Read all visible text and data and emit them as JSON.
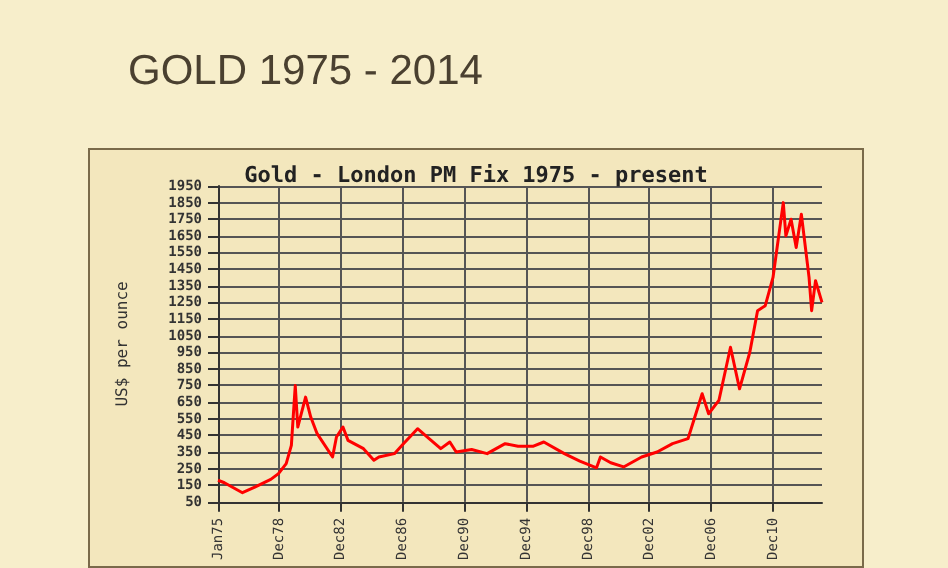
{
  "chart_data": {
    "type": "line",
    "title": "GOLD 1975 - 2014",
    "subtitle": "Gold - London PM Fix 1975 - present",
    "ylabel": "US$ per ounce",
    "x": [
      "1975-01",
      "1975-06",
      "1976-08",
      "1977-06",
      "1978-06",
      "1978-12",
      "1979-06",
      "1979-10",
      "1980-01",
      "1980-03",
      "1980-09",
      "1981-01",
      "1981-06",
      "1982-06",
      "1982-09",
      "1983-02",
      "1983-06",
      "1984-06",
      "1985-02",
      "1985-06",
      "1986-06",
      "1987-01",
      "1987-12",
      "1988-06",
      "1989-06",
      "1990-01",
      "1990-06",
      "1991-06",
      "1992-06",
      "1993-08",
      "1994-06",
      "1995-06",
      "1996-02",
      "1997-06",
      "1998-06",
      "1999-07",
      "1999-10",
      "2000-06",
      "2001-04",
      "2002-06",
      "2003-06",
      "2004-06",
      "2005-06",
      "2006-05",
      "2006-10",
      "2007-06",
      "2008-03",
      "2008-10",
      "2009-06",
      "2009-12",
      "2010-06",
      "2010-12",
      "2011-08",
      "2011-10",
      "2012-02",
      "2012-06",
      "2012-10",
      "2013-04",
      "2013-06",
      "2013-09",
      "2014-02"
    ],
    "series": [
      {
        "color": "#ff0000",
        "values": [
          180,
          165,
          105,
          140,
          185,
          220,
          280,
          390,
          750,
          500,
          680,
          560,
          460,
          320,
          440,
          500,
          420,
          370,
          300,
          320,
          340,
          400,
          490,
          450,
          370,
          410,
          350,
          365,
          340,
          400,
          385,
          385,
          410,
          340,
          295,
          255,
          320,
          285,
          260,
          320,
          350,
          400,
          430,
          700,
          580,
          660,
          980,
          730,
          950,
          1200,
          1230,
          1400,
          1850,
          1650,
          1750,
          1580,
          1780,
          1400,
          1200,
          1380,
          1250
        ]
      }
    ],
    "xlim": [
      "1975-01",
      "2014-02"
    ],
    "xticks": [
      {
        "value": "1975-01",
        "label": "Jan75"
      },
      {
        "value": "1978-12",
        "label": "Dec78"
      },
      {
        "value": "1982-12",
        "label": "Dec82"
      },
      {
        "value": "1986-12",
        "label": "Dec86"
      },
      {
        "value": "1990-12",
        "label": "Dec90"
      },
      {
        "value": "1994-12",
        "label": "Dec94"
      },
      {
        "value": "1998-12",
        "label": "Dec98"
      },
      {
        "value": "2002-12",
        "label": "Dec02"
      },
      {
        "value": "2006-12",
        "label": "Dec06"
      },
      {
        "value": "2010-12",
        "label": "Dec10"
      }
    ],
    "ylim": [
      50,
      1950
    ],
    "yticks": [
      50,
      150,
      250,
      350,
      450,
      550,
      650,
      750,
      850,
      950,
      1050,
      1150,
      1250,
      1350,
      1450,
      1550,
      1650,
      1750,
      1850,
      1950
    ],
    "grid": true,
    "marker": "none",
    "line_style": "solid"
  }
}
